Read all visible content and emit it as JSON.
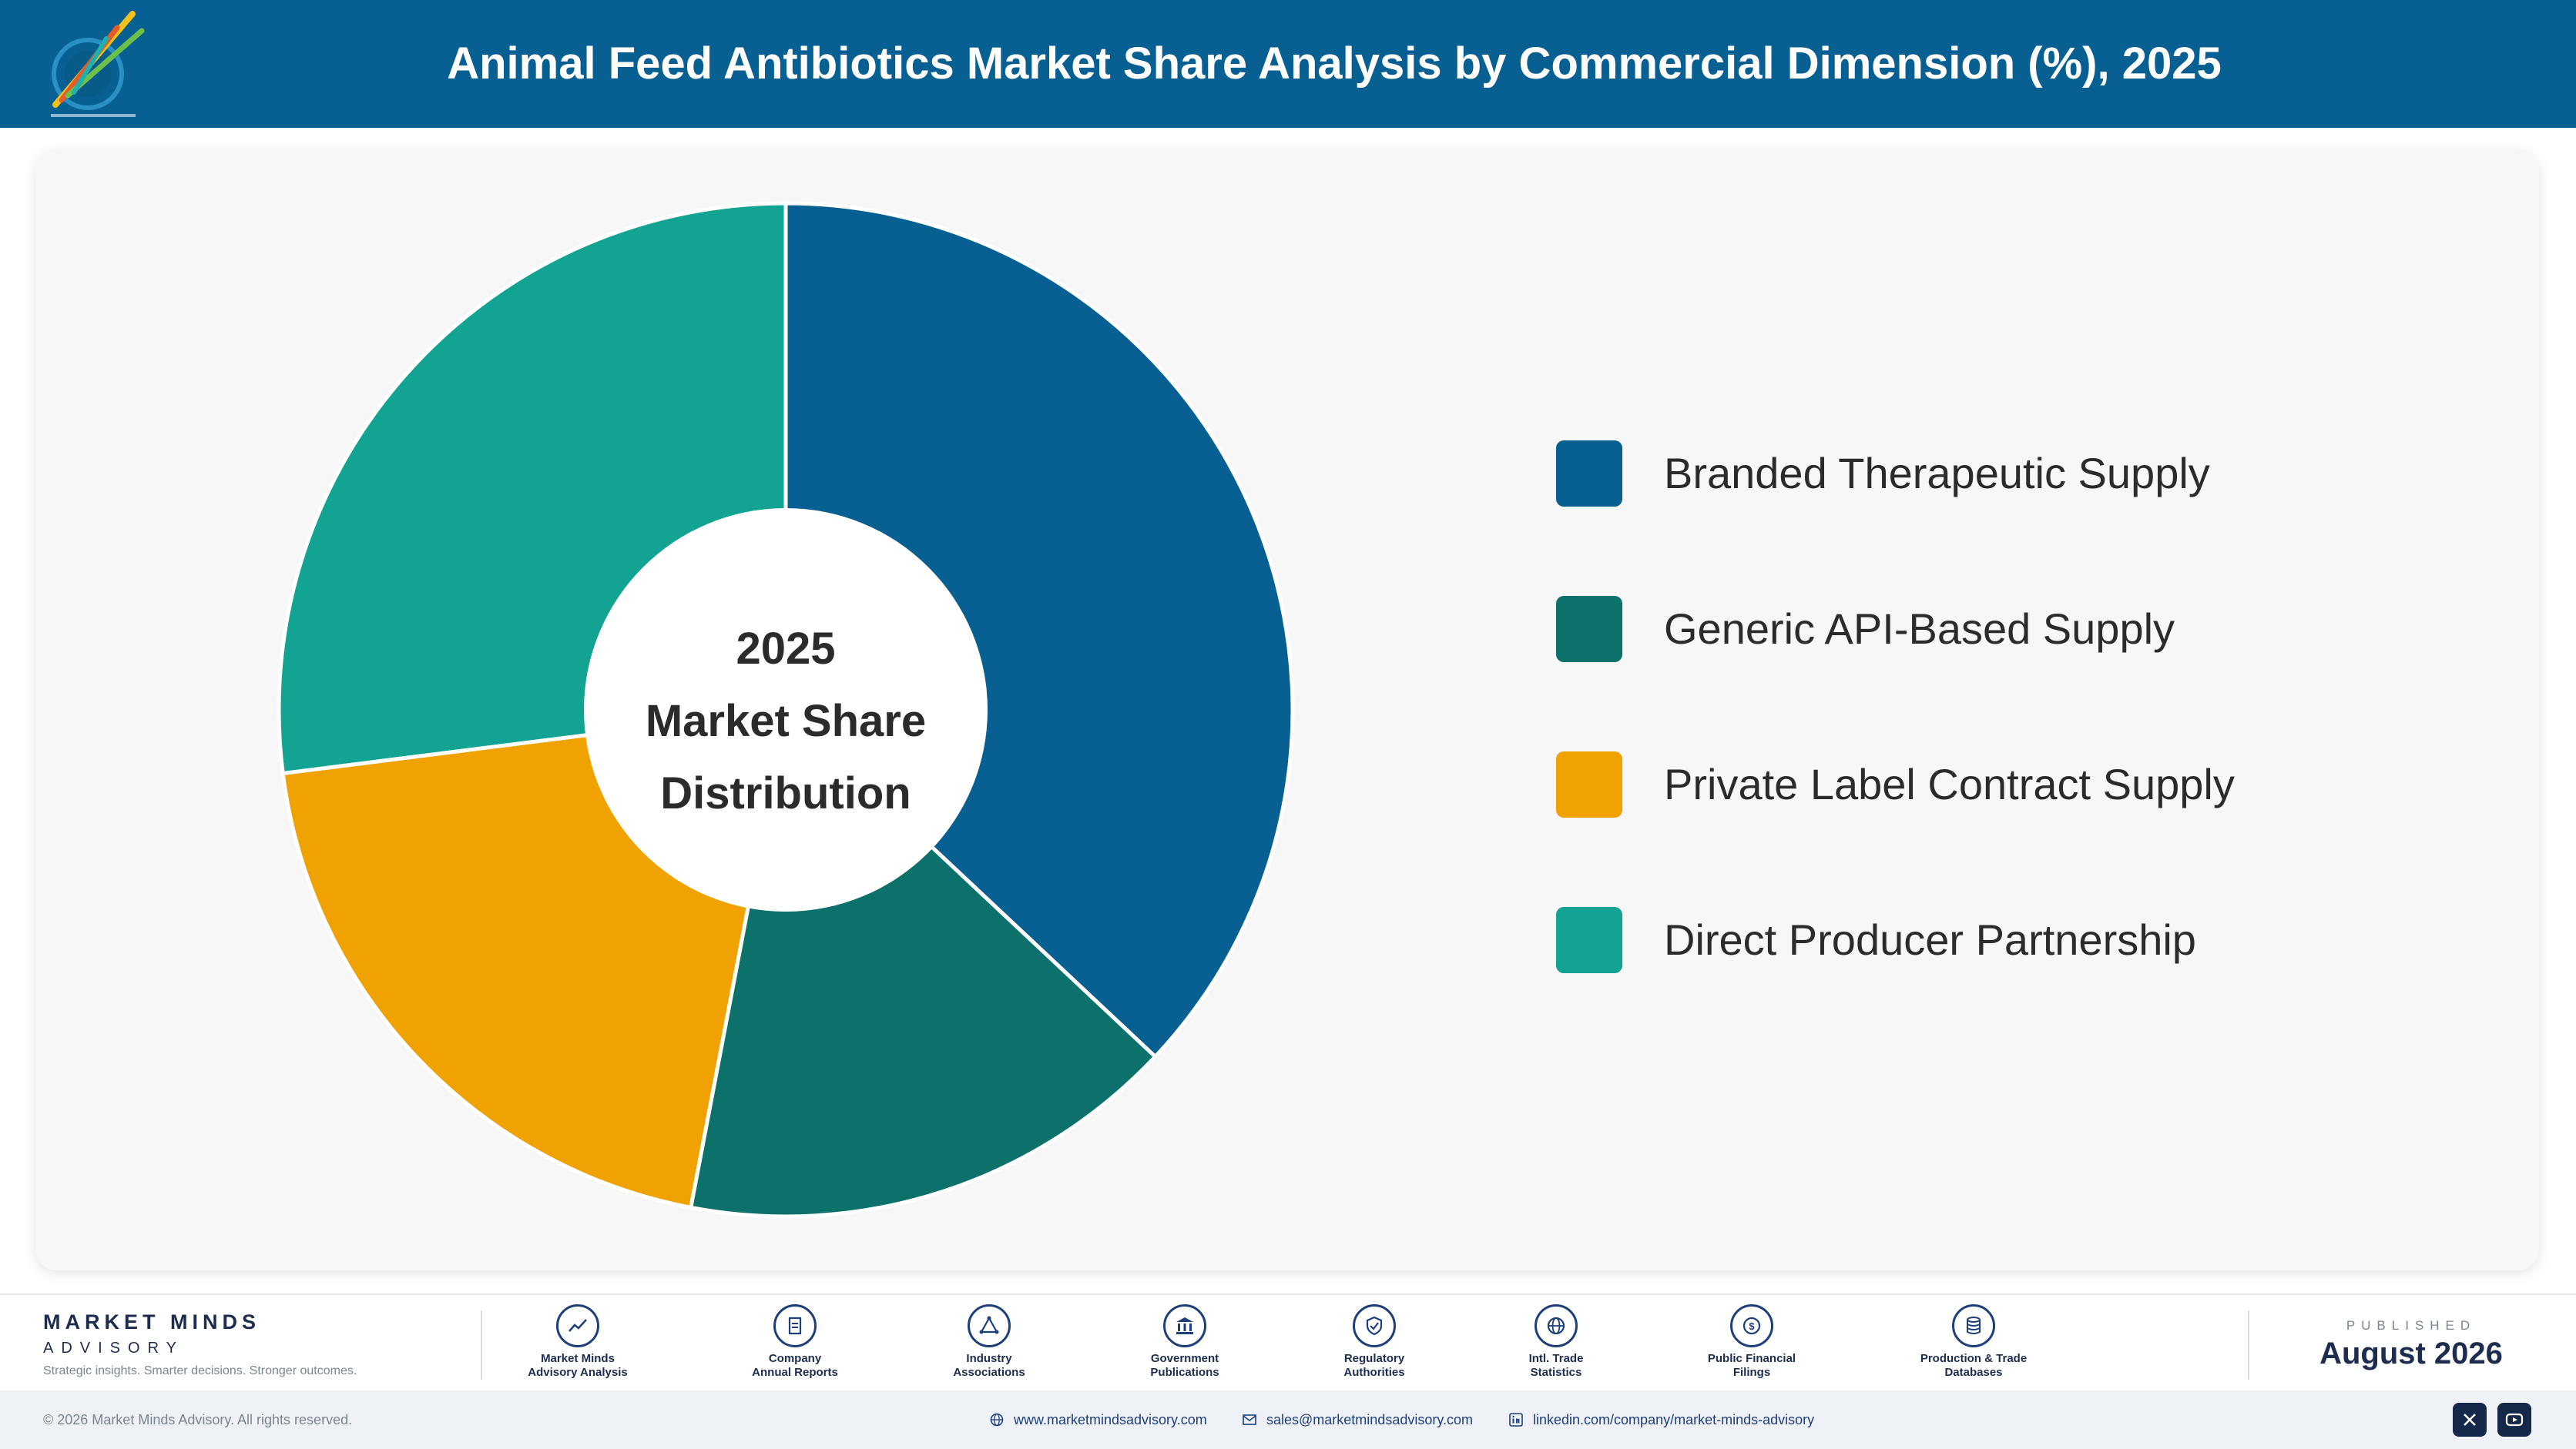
{
  "header": {
    "title": "Animal Feed Antibiotics Market Share Analysis by Commercial Dimension (%), 2025",
    "logo_icon": "brand-logo-icon"
  },
  "chart_data": {
    "type": "pie",
    "title": "Animal Feed Antibiotics Market Share Analysis by Commercial Dimension (%), 2025",
    "center_label": [
      "2025",
      "Market Share",
      "Distribution"
    ],
    "categories": [
      "Branded Therapeutic Supply",
      "Generic API-Based Supply",
      "Private Label Contract Supply",
      "Direct Producer Partnership"
    ],
    "values": [
      37,
      16,
      20,
      27
    ],
    "colors": [
      "#075f92",
      "#0c716a",
      "#f0a202",
      "#12a393"
    ],
    "legend": "right",
    "donut": true
  },
  "footer": {
    "brand_name": "MARKET MINDS",
    "brand_sub": "ADVISORY",
    "brand_tagline": "Strategic insights. Smarter decisions. Stronger outcomes.",
    "sources": [
      {
        "label1": "Market Minds",
        "label2": "Advisory Analysis",
        "icon": "trend-chart-icon"
      },
      {
        "label1": "Company",
        "label2": "Annual Reports",
        "icon": "document-icon"
      },
      {
        "label1": "Industry",
        "label2": "Associations",
        "icon": "network-icon"
      },
      {
        "label1": "Government",
        "label2": "Publications",
        "icon": "government-building-icon"
      },
      {
        "label1": "Regulatory",
        "label2": "Authorities",
        "icon": "shield-check-icon"
      },
      {
        "label1": "Intl. Trade",
        "label2": "Statistics",
        "icon": "globe-icon"
      },
      {
        "label1": "Public Financial",
        "label2": "Filings",
        "icon": "currency-icon"
      },
      {
        "label1": "Production & Trade",
        "label2": "Databases",
        "icon": "database-icon"
      }
    ],
    "published_label": "PUBLISHED",
    "published_date": "August 2026"
  },
  "bottom_bar": {
    "copyright": "© 2026 Market Minds Advisory. All rights reserved.",
    "website": "www.marketmindsadvisory.com",
    "email": "sales@marketmindsadvisory.com",
    "linkedin": "linkedin.com/company/market-minds-advisory",
    "social_icons": [
      "x-icon",
      "youtube-icon"
    ]
  }
}
